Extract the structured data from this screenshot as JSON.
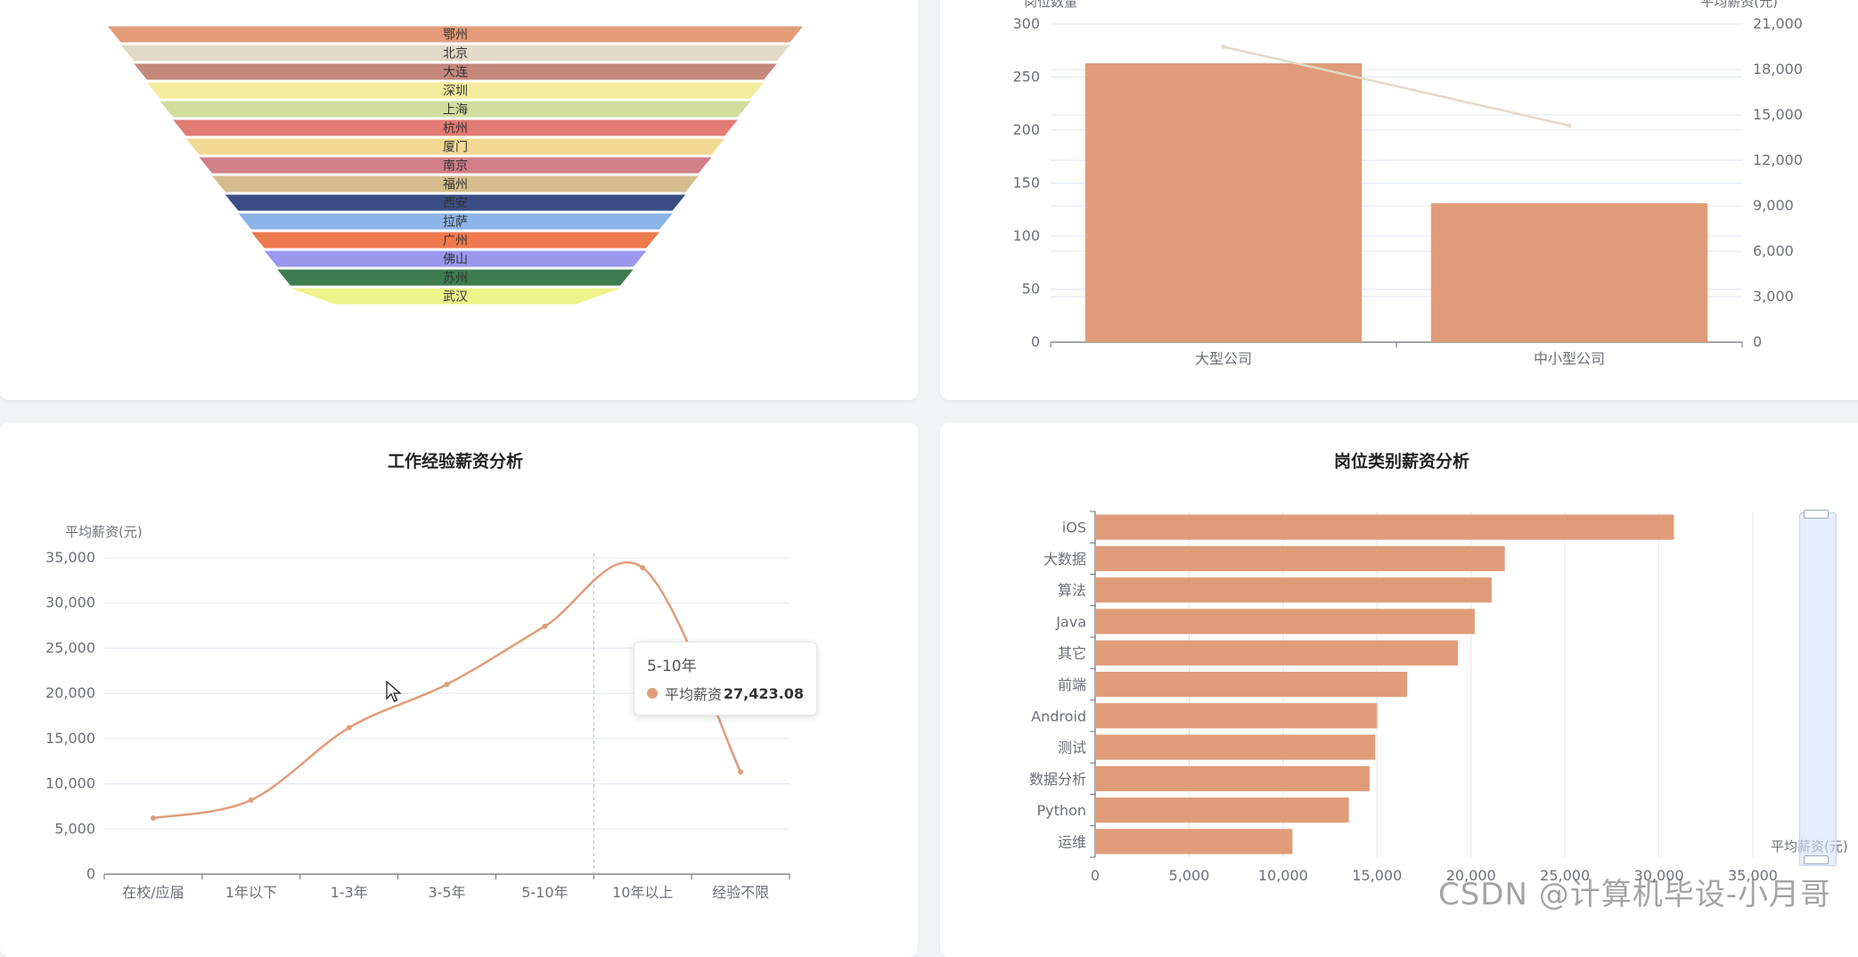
{
  "colors": {
    "primary": "#e09c79",
    "line": "#e3d9c8",
    "grid": "#e0e6f1",
    "axis": "#6e7079",
    "tooltip_dot": "#e09c79"
  },
  "chart_data": [
    {
      "type": "funnel",
      "title": "",
      "categories": [
        "鄂州",
        "北京",
        "大连",
        "深圳",
        "上海",
        "杭州",
        "厦门",
        "南京",
        "福州",
        "西安",
        "拉萨",
        "广州",
        "佛山",
        "苏州",
        "武汉"
      ],
      "colors": [
        "#e39b78",
        "#e2d9c8",
        "#c4887c",
        "#f2ec9c",
        "#d2dd9e",
        "#e27b73",
        "#f2d991",
        "#d17f88",
        "#d5bc8c",
        "#3a4d86",
        "#8bb4e8",
        "#ef7a4d",
        "#9a97ec",
        "#3c7c4f",
        "#eef28a"
      ]
    },
    {
      "type": "bar",
      "title": "",
      "categories": [
        "大型公司",
        "中小型公司"
      ],
      "series": [
        {
          "name": "",
          "type": "bar",
          "axis": "left",
          "values": [
            263,
            131
          ]
        },
        {
          "name": "",
          "type": "line",
          "axis": "right",
          "values": [
            19500,
            14300
          ]
        }
      ],
      "ylabel": "岗位数量",
      "ylabel_right": "平均薪资(元)",
      "ylim": [
        0,
        300
      ],
      "yticks": [
        "0",
        "50",
        "100",
        "150",
        "200",
        "250",
        "300"
      ],
      "ylim_right": [
        0,
        21000
      ],
      "yticks_right": [
        "0",
        "3,000",
        "6,000",
        "9,000",
        "12,000",
        "15,000",
        "18,000",
        "21,000"
      ],
      "grid": true
    },
    {
      "type": "line",
      "title": "工作经验薪资分析",
      "categories": [
        "在校/应届",
        "1年以下",
        "1-3年",
        "3-5年",
        "5-10年",
        "10年以上",
        "经验不限"
      ],
      "series": [
        {
          "name": "平均薪资",
          "values": [
            6200,
            8200,
            16200,
            21000,
            27423.08,
            33900,
            11300
          ]
        }
      ],
      "ylabel": "平均薪资(元)",
      "ylim": [
        0,
        35000
      ],
      "yticks": [
        "0",
        "5,000",
        "10,000",
        "15,000",
        "20,000",
        "25,000",
        "30,000",
        "35,000"
      ],
      "smooth": true,
      "grid": true
    },
    {
      "type": "bar",
      "orientation": "horizontal",
      "title": "岗位类别薪资分析",
      "categories": [
        "iOS",
        "大数据",
        "算法",
        "Java",
        "其它",
        "前端",
        "Android",
        "测试",
        "数据分析",
        "Python",
        "运维"
      ],
      "values": [
        30800,
        21800,
        21100,
        20200,
        19300,
        16600,
        15000,
        14900,
        14600,
        13500,
        10500
      ],
      "xlabel": "平均薪资(元)",
      "xlim": [
        0,
        35000
      ],
      "xticks": [
        "0",
        "5,000",
        "10,000",
        "15,000",
        "20,000",
        "25,000",
        "30,000",
        "35,000"
      ],
      "grid": true
    }
  ],
  "tooltip": {
    "title": "5-10年",
    "series_name": "平均薪资",
    "value": "27,423.08"
  },
  "watermark": "CSDN @计算机毕设-小月哥"
}
